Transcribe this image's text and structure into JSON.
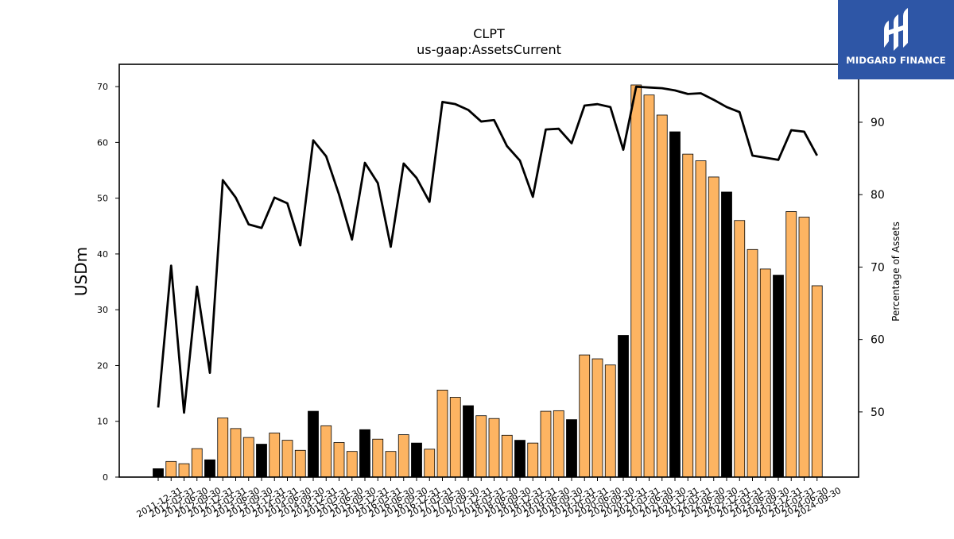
{
  "chart_data": {
    "type": "bar",
    "title": "CLPT",
    "subtitle": "us-gaap:AssetsCurrent",
    "ylabel": "USDm",
    "y2label": "Percentage of Assets",
    "ylim": [
      0,
      74
    ],
    "y2lim": [
      41,
      98
    ],
    "yticks": [
      0,
      10,
      20,
      30,
      40,
      50,
      60,
      70
    ],
    "y2ticks": [
      50,
      60,
      70,
      80,
      90
    ],
    "bar_color": "#fdb462",
    "highlight_color": "#000000",
    "line_color": "#000000",
    "categories": [
      "2011-12-31",
      "2012-03-31",
      "2012-06-30",
      "2012-09-30",
      "2012-12-31",
      "2013-03-31",
      "2013-06-30",
      "2013-09-30",
      "2013-12-31",
      "2014-03-31",
      "2014-06-30",
      "2014-09-30",
      "2014-12-31",
      "2015-03-31",
      "2015-06-30",
      "2015-09-30",
      "2015-12-31",
      "2016-03-31",
      "2016-06-30",
      "2016-09-30",
      "2016-12-31",
      "2017-03-31",
      "2017-06-30",
      "2017-09-30",
      "2017-12-31",
      "2018-03-31",
      "2018-06-30",
      "2018-09-30",
      "2018-12-31",
      "2019-03-31",
      "2019-06-30",
      "2019-09-30",
      "2019-12-31",
      "2020-03-31",
      "2020-06-30",
      "2020-09-30",
      "2020-12-31",
      "2021-03-31",
      "2021-06-30",
      "2021-09-30",
      "2021-12-31",
      "2022-03-31",
      "2022-06-30",
      "2022-09-30",
      "2022-12-31",
      "2023-03-31",
      "2023-06-30",
      "2023-09-30",
      "2023-12-31",
      "2024-03-31",
      "2024-06-30",
      "2024-09-30"
    ],
    "series": [
      {
        "type": "bar",
        "values": [
          1.5,
          2.8,
          2.4,
          5.1,
          3.1,
          10.6,
          8.7,
          7.1,
          5.9,
          7.9,
          6.6,
          4.8,
          11.8,
          9.2,
          6.2,
          4.6,
          8.5,
          6.8,
          4.6,
          7.6,
          6.1,
          5.0,
          15.6,
          14.3,
          12.8,
          11.0,
          10.5,
          7.5,
          6.6,
          6.1,
          11.8,
          11.9,
          10.3,
          21.9,
          21.2,
          20.1,
          25.4,
          70.3,
          68.5,
          64.9,
          61.9,
          57.9,
          56.7,
          53.8,
          51.1,
          46.0,
          40.8,
          37.3,
          36.2,
          47.6,
          46.6,
          34.3
        ]
      },
      {
        "type": "line",
        "values": [
          50.6,
          70.2,
          49.9,
          67.3,
          55.4,
          82.0,
          79.6,
          75.9,
          75.4,
          79.6,
          78.8,
          73.0,
          87.5,
          85.3,
          80.0,
          73.8,
          84.4,
          81.6,
          72.8,
          84.3,
          82.3,
          79.0,
          92.8,
          92.5,
          91.7,
          90.1,
          90.3,
          86.7,
          84.7,
          79.7,
          89.0,
          89.1,
          87.1,
          92.3,
          92.5,
          92.1,
          86.2,
          94.9,
          94.8,
          94.7,
          94.4,
          93.9,
          94.0,
          93.1,
          92.1,
          91.4,
          85.4,
          85.1,
          84.8,
          88.9,
          88.7,
          85.4
        ]
      }
    ],
    "highlight_indices": [
      0,
      4,
      8,
      12,
      16,
      20,
      24,
      28,
      32,
      36,
      40,
      44,
      48
    ]
  },
  "logo": {
    "text": "MIDGARD FINANCE",
    "color": "#2e56a6"
  }
}
